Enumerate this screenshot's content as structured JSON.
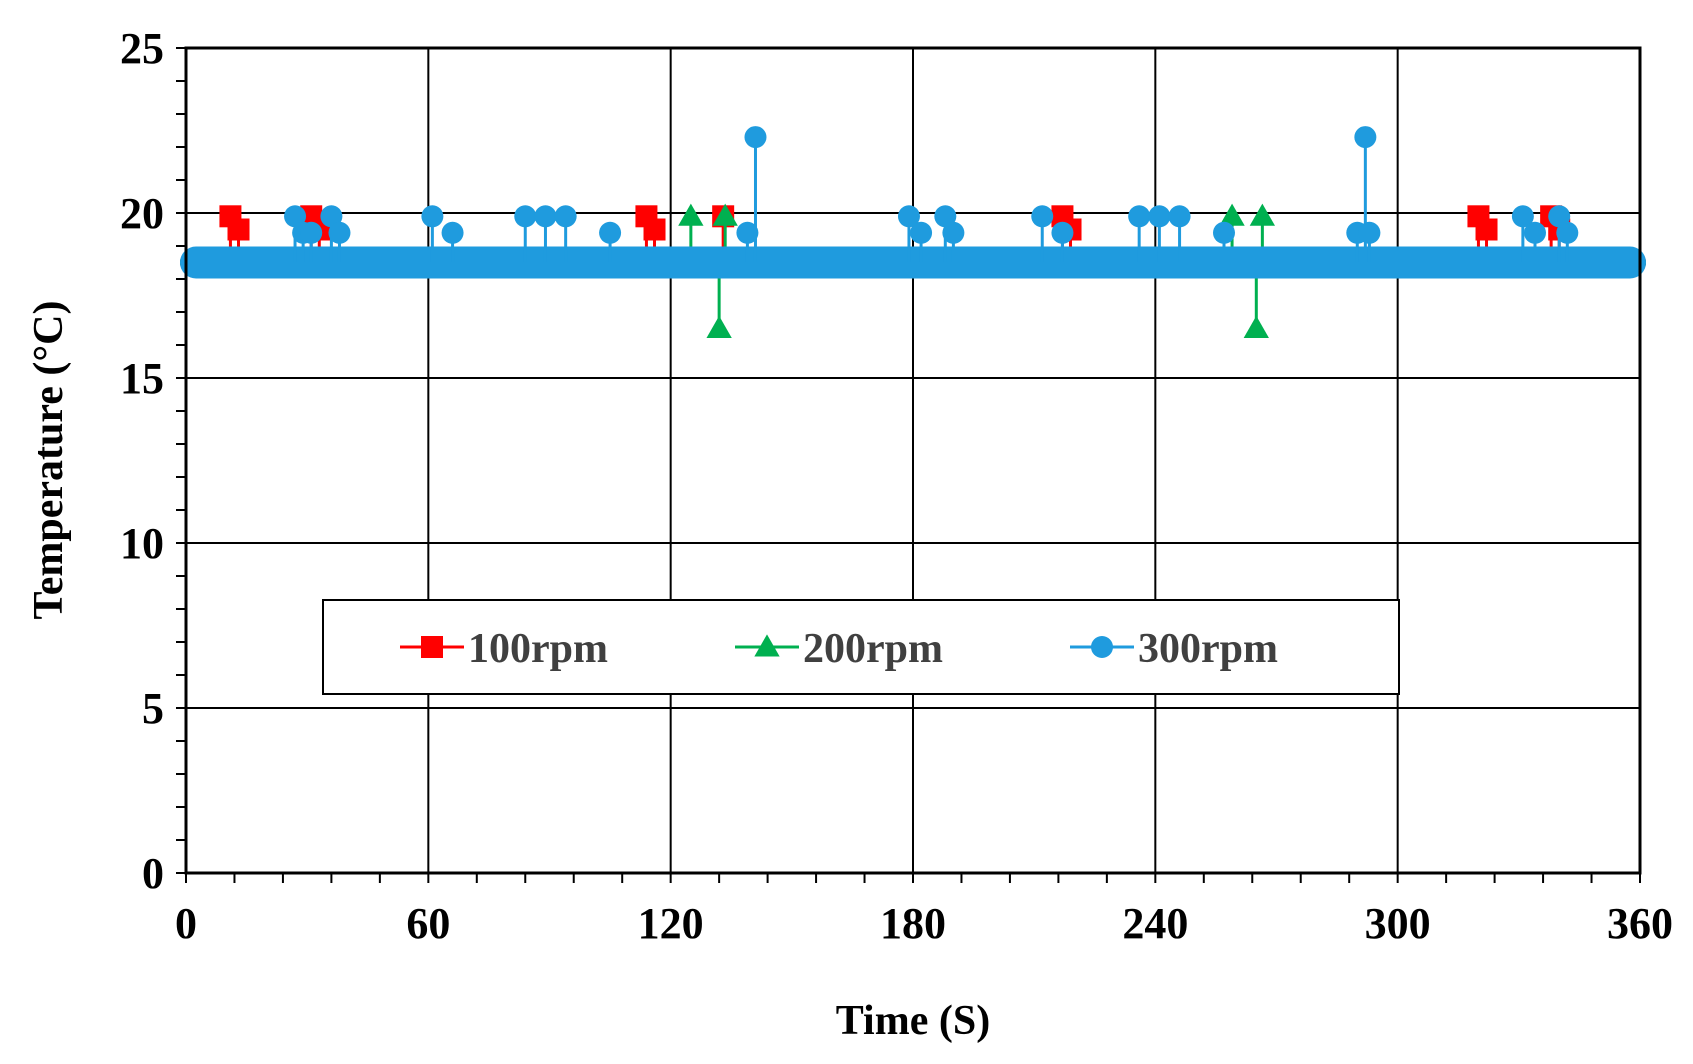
{
  "chart_data": {
    "type": "line",
    "title": "",
    "xlabel": "Time (S)",
    "ylabel": "Temperature (°C)",
    "xlim": [
      0,
      360
    ],
    "ylim": [
      0,
      25
    ],
    "x_ticks": [
      "0",
      "60",
      "120",
      "180",
      "240",
      "300",
      "360"
    ],
    "y_ticks": [
      "0",
      "5",
      "10",
      "15",
      "20",
      "25"
    ],
    "grid": true,
    "legend_position": "center",
    "baseline": 18.5,
    "series": [
      {
        "name": "100rpm",
        "color": "#ff0000",
        "marker": "square",
        "spikes": [
          {
            "x": 11,
            "y": 19.9
          },
          {
            "x": 13,
            "y": 19.5
          },
          {
            "x": 31,
            "y": 19.9
          },
          {
            "x": 33,
            "y": 19.5
          },
          {
            "x": 114,
            "y": 19.9
          },
          {
            "x": 116,
            "y": 19.5
          },
          {
            "x": 133,
            "y": 19.9
          },
          {
            "x": 217,
            "y": 19.9
          },
          {
            "x": 219,
            "y": 19.5
          },
          {
            "x": 320,
            "y": 19.9
          },
          {
            "x": 322,
            "y": 19.5
          },
          {
            "x": 338,
            "y": 19.9
          },
          {
            "x": 340,
            "y": 19.5
          }
        ]
      },
      {
        "name": "200rpm",
        "color": "#00b050",
        "marker": "triangle",
        "spikes": [
          {
            "x": 125,
            "y": 19.9
          },
          {
            "x": 132,
            "y": 16.5
          },
          {
            "x": 133.5,
            "y": 19.9
          },
          {
            "x": 259,
            "y": 19.9
          },
          {
            "x": 265,
            "y": 16.5
          },
          {
            "x": 266.5,
            "y": 19.9
          }
        ]
      },
      {
        "name": "300rpm",
        "color": "#1f9bde",
        "marker": "circle",
        "spikes": [
          {
            "x": 27,
            "y": 19.9
          },
          {
            "x": 29,
            "y": 19.4
          },
          {
            "x": 31,
            "y": 19.4
          },
          {
            "x": 36,
            "y": 19.9
          },
          {
            "x": 38,
            "y": 19.4
          },
          {
            "x": 61,
            "y": 19.9
          },
          {
            "x": 66,
            "y": 19.4
          },
          {
            "x": 84,
            "y": 19.9
          },
          {
            "x": 89,
            "y": 19.9
          },
          {
            "x": 94,
            "y": 19.9
          },
          {
            "x": 105,
            "y": 19.4
          },
          {
            "x": 139,
            "y": 19.4
          },
          {
            "x": 141,
            "y": 22.3
          },
          {
            "x": 179,
            "y": 19.9
          },
          {
            "x": 182,
            "y": 19.4
          },
          {
            "x": 188,
            "y": 19.9
          },
          {
            "x": 190,
            "y": 19.4
          },
          {
            "x": 212,
            "y": 19.9
          },
          {
            "x": 217,
            "y": 19.4
          },
          {
            "x": 236,
            "y": 19.9
          },
          {
            "x": 241,
            "y": 19.9
          },
          {
            "x": 246,
            "y": 19.9
          },
          {
            "x": 257,
            "y": 19.4
          },
          {
            "x": 290,
            "y": 19.4
          },
          {
            "x": 292,
            "y": 22.3
          },
          {
            "x": 293,
            "y": 19.4
          },
          {
            "x": 331,
            "y": 19.9
          },
          {
            "x": 334,
            "y": 19.4
          },
          {
            "x": 340,
            "y": 19.9
          },
          {
            "x": 342,
            "y": 19.4
          }
        ]
      }
    ]
  }
}
